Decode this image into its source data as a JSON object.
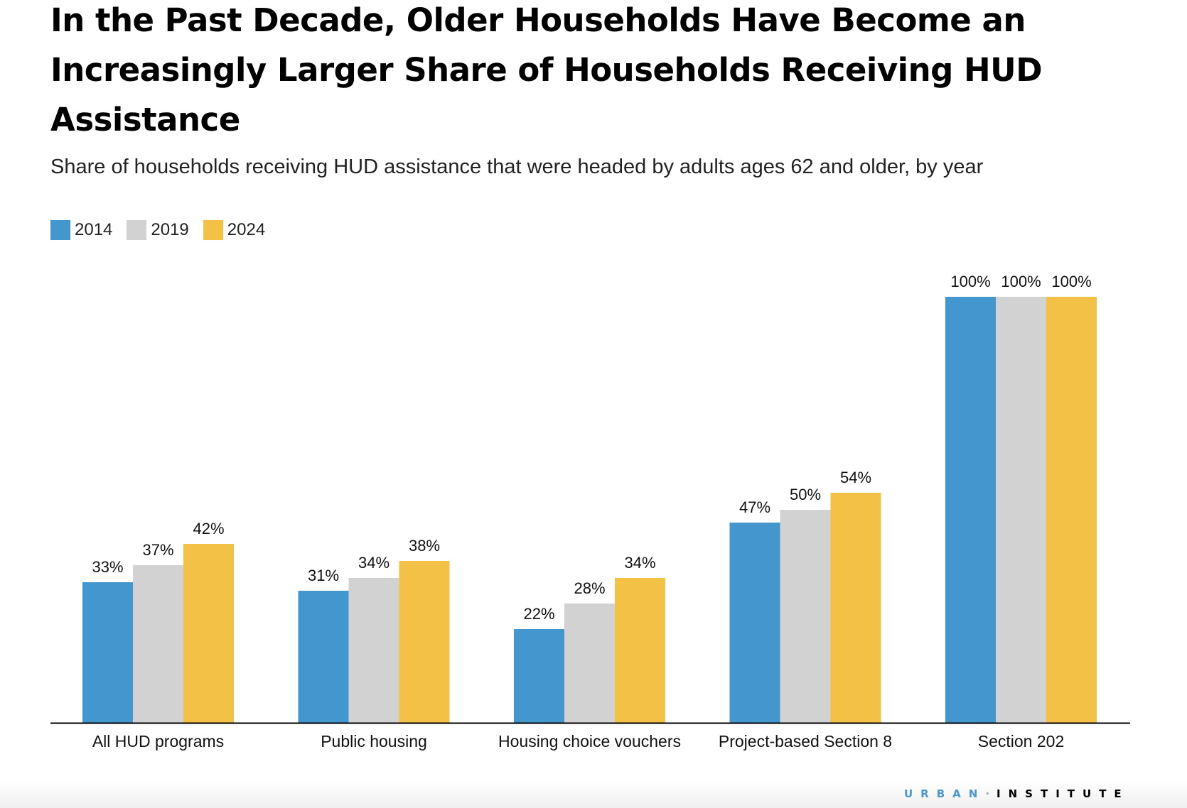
{
  "chart_data": {
    "type": "bar",
    "title": "In the Past Decade, Older Households Have Become an Increasingly Larger Share of Households Receiving HUD Assistance",
    "subtitle": "Share of households receiving HUD assistance that were headed by adults ages 62 and older, by year",
    "xlabel": "",
    "ylabel": "",
    "ylim": [
      0,
      100
    ],
    "grid": false,
    "legend_position": "top-left",
    "categories": [
      "All HUD programs",
      "Public housing",
      "Housing choice vouchers",
      "Project-based Section 8",
      "Section 202"
    ],
    "series": [
      {
        "name": "2014",
        "color": "#4496ce",
        "values": [
          33,
          31,
          22,
          47,
          100
        ],
        "labels": [
          "33%",
          "31%",
          "22%",
          "47%",
          "100%"
        ]
      },
      {
        "name": "2019",
        "color": "#d2d2d2",
        "values": [
          37,
          34,
          28,
          50,
          100
        ],
        "labels": [
          "37%",
          "34%",
          "28%",
          "50%",
          "100%"
        ]
      },
      {
        "name": "2024",
        "color": "#f2c145",
        "values": [
          42,
          38,
          34,
          54,
          100
        ],
        "labels": [
          "42%",
          "38%",
          "34%",
          "54%",
          "100%"
        ]
      }
    ]
  },
  "footer": {
    "logo_word1": "URBAN",
    "logo_separator": "·",
    "logo_word2": "INSTITUTE",
    "logo_colors": {
      "urban": "#4a97d0",
      "institute": "#000000"
    }
  }
}
